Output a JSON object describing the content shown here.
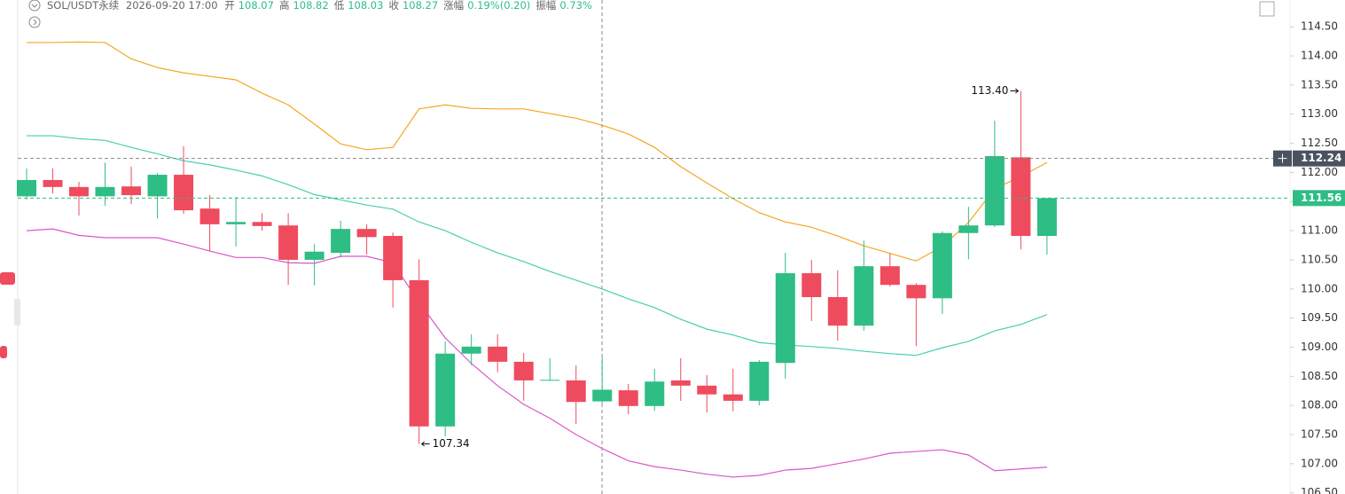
{
  "header": {
    "symbol": "SOL/USDT永续",
    "time": "2026-09-20 17:00",
    "fields": [
      {
        "label": "开",
        "value": "108.07"
      },
      {
        "label": "高",
        "value": "108.82"
      },
      {
        "label": "低",
        "value": "108.03"
      },
      {
        "label": "收",
        "value": "108.27"
      },
      {
        "label": "涨幅",
        "value": "0.19%(0.20)"
      },
      {
        "label": "振幅",
        "value": "0.73%"
      }
    ]
  },
  "chart_data": {
    "type": "candlestick",
    "ylim": [
      106.48,
      114.96
    ],
    "yticks": [
      {
        "value": 106.5,
        "label": "106.50"
      },
      {
        "value": 107,
        "label": "107.00"
      },
      {
        "value": 107.5,
        "label": "107.50"
      },
      {
        "value": 108,
        "label": "108.00"
      },
      {
        "value": 108.5,
        "label": "108.50"
      },
      {
        "value": 109,
        "label": "109.00"
      },
      {
        "value": 109.5,
        "label": "109.50"
      },
      {
        "value": 110,
        "label": "110.00"
      },
      {
        "value": 110.5,
        "label": "110.50"
      },
      {
        "value": 111,
        "label": "111.00"
      },
      {
        "value": 111.5,
        "label": "111.50"
      },
      {
        "value": 112,
        "label": "112.00"
      },
      {
        "value": 112.5,
        "label": "112.50"
      },
      {
        "value": 113,
        "label": "113.00"
      },
      {
        "value": 113.5,
        "label": "113.50"
      },
      {
        "value": 114,
        "label": "114.00"
      },
      {
        "value": 114.5,
        "label": "114.50"
      }
    ],
    "up_color": "#2ebd85",
    "down_color": "#ef4b5e",
    "open": [
      111.59,
      111.87,
      111.75,
      111.59,
      111.76,
      111.59,
      111.96,
      111.38,
      111.11,
      111.15,
      111.09,
      110.5,
      110.62,
      111.03,
      110.91,
      110.15,
      107.64,
      108.89,
      109.01,
      108.75,
      108.43,
      108.43,
      108.07,
      108.26,
      107.99,
      108.43,
      108.34,
      108.19,
      108.08,
      108.73,
      110.27,
      109.86,
      109.37,
      110.39,
      110.07,
      109.84,
      110.96,
      111.09,
      112.26,
      110.91
    ],
    "high": [
      112.07,
      112.07,
      111.84,
      112.17,
      112.1,
      111.99,
      112.45,
      111.61,
      111.58,
      111.3,
      111.3,
      110.77,
      111.17,
      111.11,
      110.97,
      110.51,
      109.1,
      109.22,
      109.22,
      108.9,
      108.81,
      108.69,
      108.82,
      108.37,
      108.63,
      108.81,
      108.52,
      108.63,
      108.78,
      110.62,
      110.5,
      110.32,
      110.83,
      110.61,
      110.1,
      110.99,
      111.41,
      112.89,
      113.4,
      111.56
    ],
    "low": [
      111.53,
      111.64,
      111.26,
      111.43,
      111.46,
      111.21,
      111.29,
      110.65,
      110.73,
      111.0,
      110.07,
      110.06,
      110.54,
      110.59,
      109.68,
      107.34,
      107.47,
      108.69,
      108.57,
      108.08,
      108.42,
      107.68,
      108.03,
      107.85,
      107.91,
      108.08,
      107.88,
      107.9,
      108.0,
      108.46,
      109.45,
      109.11,
      109.28,
      110.04,
      109.02,
      109.57,
      110.51,
      111.06,
      110.68,
      110.59
    ],
    "close": [
      111.87,
      111.75,
      111.59,
      111.75,
      111.61,
      111.96,
      111.35,
      111.11,
      111.15,
      111.08,
      110.5,
      110.64,
      111.03,
      110.89,
      110.15,
      107.64,
      108.89,
      109.01,
      108.75,
      108.43,
      108.44,
      108.06,
      108.27,
      107.99,
      108.41,
      108.34,
      108.19,
      108.08,
      108.75,
      110.27,
      109.86,
      109.37,
      110.39,
      110.07,
      109.84,
      110.96,
      111.09,
      112.28,
      110.91,
      111.56
    ],
    "overlays": [
      {
        "color": "#f5a623",
        "values": [
          114.23,
          114.23,
          114.24,
          114.23,
          113.95,
          113.8,
          113.71,
          113.65,
          113.59,
          113.36,
          113.16,
          112.83,
          112.49,
          112.39,
          112.43,
          113.09,
          113.16,
          113.1,
          113.09,
          113.09,
          113.01,
          112.93,
          112.81,
          112.66,
          112.43,
          112.1,
          111.82,
          111.55,
          111.31,
          111.15,
          111.06,
          110.91,
          110.74,
          110.61,
          110.48,
          110.73,
          111.14,
          111.72,
          111.93,
          112.17
        ]
      },
      {
        "color": "#45cfb2",
        "values": [
          112.63,
          112.63,
          112.58,
          112.55,
          112.43,
          112.32,
          112.2,
          112.13,
          112.04,
          111.94,
          111.79,
          111.62,
          111.53,
          111.44,
          111.37,
          111.15,
          111.0,
          110.8,
          110.62,
          110.47,
          110.3,
          110.15,
          110.0,
          109.83,
          109.68,
          109.48,
          109.31,
          109.21,
          109.08,
          109.04,
          109.01,
          108.98,
          108.93,
          108.89,
          108.86,
          108.99,
          109.1,
          109.28,
          109.39,
          109.56
        ]
      },
      {
        "color": "#d957c6",
        "values": [
          111.0,
          111.03,
          110.92,
          110.88,
          110.88,
          110.88,
          110.77,
          110.65,
          110.54,
          110.54,
          110.45,
          110.44,
          110.56,
          110.56,
          110.45,
          109.77,
          109.16,
          108.72,
          108.34,
          108.02,
          107.78,
          107.5,
          107.26,
          107.05,
          106.95,
          106.89,
          106.82,
          106.77,
          106.8,
          106.89,
          106.92,
          107.0,
          107.08,
          107.18,
          107.21,
          107.24,
          107.15,
          106.88,
          106.91,
          106.94
        ]
      }
    ],
    "high_label": "113.40",
    "low_label": "107.34",
    "crosshair": {
      "value": 112.24,
      "label": "112.24"
    },
    "last_price": {
      "value": 111.56,
      "label": "111.56"
    }
  }
}
